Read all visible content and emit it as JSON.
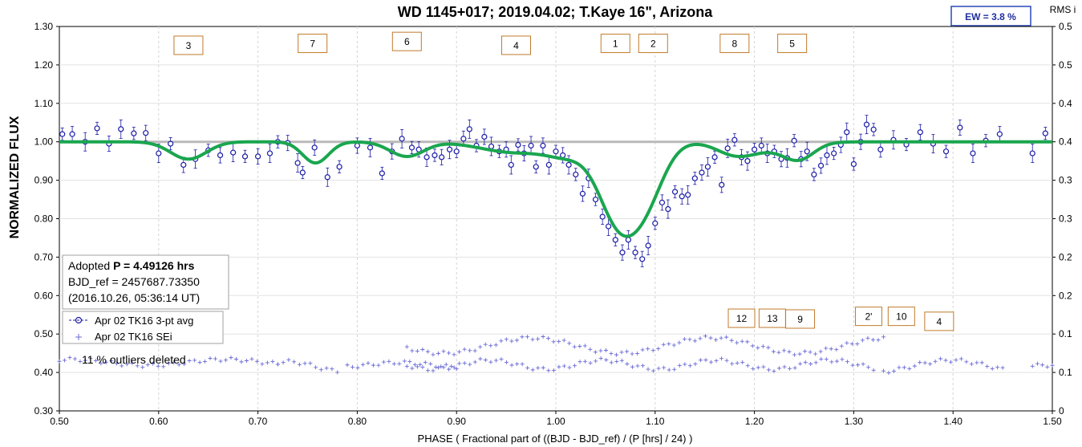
{
  "chart_data": {
    "type": "scatter",
    "title": "WD 1145+017; 2019.04.02; T.Kaye 16\", Arizona",
    "xlabel": "PHASE ( Fractional part of ((BJD - BJD_ref) / (P [hrs] / 24) )",
    "ylabel": "NORMALIZED FLUX",
    "y2label": "RMS i",
    "xlim": [
      0.5,
      1.5
    ],
    "ylim": [
      0.3,
      1.3
    ],
    "y2lim": [
      0,
      0.5
    ],
    "xticks": [
      "0.50",
      "0.60",
      "0.70",
      "0.80",
      "0.90",
      "1.00",
      "1.10",
      "1.20",
      "1.30",
      "1.40",
      "1.50"
    ],
    "yticks": [
      "0.30",
      "0.40",
      "0.50",
      "0.60",
      "0.70",
      "0.80",
      "0.90",
      "1.00",
      "1.10",
      "1.20",
      "1.30"
    ],
    "y2ticks": [
      "0",
      "0.1",
      "0.1",
      "0.2",
      "0.2",
      "0.3",
      "0.3",
      "0.4",
      "0.4",
      "0.5",
      "0.5"
    ],
    "ew_box": "EW =  3.8 %",
    "info": {
      "line1_prefix": "Adopted ",
      "line1_bold": "P = 4.49126 hrs",
      "line2": "BJD_ref = 2457687.73350",
      "line3": "(2016.10.26, 05:36:14 UT)"
    },
    "legend": [
      {
        "label": "Apr 02 TK16 3-pt avg",
        "marker": "circle"
      },
      {
        "label": "Apr 02 TK16 SEi",
        "marker": "plus"
      }
    ],
    "outlier_note": "11 % outliers deleted",
    "dip_labels": [
      {
        "text": "3",
        "x": 0.63,
        "y": 1.25
      },
      {
        "text": "7",
        "x": 0.755,
        "y": 1.255
      },
      {
        "text": "6",
        "x": 0.85,
        "y": 1.26
      },
      {
        "text": "4",
        "x": 0.96,
        "y": 1.25
      },
      {
        "text": "1",
        "x": 1.06,
        "y": 1.255
      },
      {
        "text": "2",
        "x": 1.098,
        "y": 1.255
      },
      {
        "text": "8",
        "x": 1.18,
        "y": 1.255
      },
      {
        "text": "5",
        "x": 1.238,
        "y": 1.255
      },
      {
        "text": "12",
        "x": 1.187,
        "y": 0.54
      },
      {
        "text": "13",
        "x": 1.218,
        "y": 0.54
      },
      {
        "text": "9",
        "x": 1.246,
        "y": 0.538
      },
      {
        "text": "2'",
        "x": 1.315,
        "y": 0.545
      },
      {
        "text": "10",
        "x": 1.348,
        "y": 0.545
      },
      {
        "text": "4",
        "x": 1.386,
        "y": 0.532
      }
    ],
    "reference_line": 1.0,
    "model_curve": {
      "baseline": 1.0,
      "dips": [
        {
          "center": 0.63,
          "depth": 0.045,
          "width": 0.018
        },
        {
          "center": 0.758,
          "depth": 0.055,
          "width": 0.013
        },
        {
          "center": 0.85,
          "depth": 0.038,
          "width": 0.017
        },
        {
          "center": 0.96,
          "depth": 0.028,
          "width": 0.035
        },
        {
          "center": 1.063,
          "depth": 0.2,
          "width": 0.02
        },
        {
          "center": 1.092,
          "depth": 0.12,
          "width": 0.018
        },
        {
          "center": 1.012,
          "depth": 0.03,
          "width": 0.02
        },
        {
          "center": 1.18,
          "depth": 0.025,
          "width": 0.018
        },
        {
          "center": 1.245,
          "depth": 0.038,
          "width": 0.015
        },
        {
          "center": 1.21,
          "depth": 0.02,
          "width": 0.03
        }
      ]
    },
    "series": [
      {
        "name": "Apr 02 TK16 3-pt avg",
        "points": [
          [
            0.503,
            1.02
          ],
          [
            0.513,
            1.02
          ],
          [
            0.526,
            1.0
          ],
          [
            0.538,
            1.035
          ],
          [
            0.55,
            0.995
          ],
          [
            0.562,
            1.033
          ],
          [
            0.575,
            1.022
          ],
          [
            0.587,
            1.023
          ],
          [
            0.6,
            0.97
          ],
          [
            0.612,
            0.995
          ],
          [
            0.625,
            0.94
          ],
          [
            0.637,
            0.955
          ],
          [
            0.65,
            0.978
          ],
          [
            0.662,
            0.965
          ],
          [
            0.675,
            0.972
          ],
          [
            0.687,
            0.962
          ],
          [
            0.7,
            0.962
          ],
          [
            0.712,
            0.97
          ],
          [
            0.72,
            1.0
          ],
          [
            0.73,
            0.997
          ],
          [
            0.74,
            0.945
          ],
          [
            0.745,
            0.92
          ],
          [
            0.757,
            0.985
          ],
          [
            0.77,
            0.908
          ],
          [
            0.782,
            0.935
          ],
          [
            0.8,
            0.99
          ],
          [
            0.813,
            0.985
          ],
          [
            0.825,
            0.918
          ],
          [
            0.835,
            0.975
          ],
          [
            0.845,
            1.008
          ],
          [
            0.855,
            0.985
          ],
          [
            0.862,
            0.98
          ],
          [
            0.87,
            0.96
          ],
          [
            0.878,
            0.965
          ],
          [
            0.885,
            0.96
          ],
          [
            0.893,
            0.98
          ],
          [
            0.9,
            0.975
          ],
          [
            0.907,
            1.008
          ],
          [
            0.913,
            1.033
          ],
          [
            0.92,
            0.99
          ],
          [
            0.928,
            1.013
          ],
          [
            0.935,
            0.988
          ],
          [
            0.943,
            0.975
          ],
          [
            0.95,
            0.98
          ],
          [
            0.955,
            0.94
          ],
          [
            0.962,
            0.992
          ],
          [
            0.968,
            0.97
          ],
          [
            0.975,
            0.99
          ],
          [
            0.98,
            0.935
          ],
          [
            0.987,
            0.99
          ],
          [
            0.993,
            0.94
          ],
          [
            1.0,
            0.975
          ],
          [
            1.007,
            0.965
          ],
          [
            1.013,
            0.94
          ],
          [
            1.02,
            0.915
          ],
          [
            1.027,
            0.865
          ],
          [
            1.033,
            0.905
          ],
          [
            1.04,
            0.85
          ],
          [
            1.047,
            0.805
          ],
          [
            1.053,
            0.78
          ],
          [
            1.06,
            0.745
          ],
          [
            1.067,
            0.712
          ],
          [
            1.073,
            0.745
          ],
          [
            1.08,
            0.712
          ],
          [
            1.087,
            0.695
          ],
          [
            1.093,
            0.73
          ],
          [
            1.1,
            0.788
          ],
          [
            1.107,
            0.842
          ],
          [
            1.113,
            0.825
          ],
          [
            1.12,
            0.87
          ],
          [
            1.127,
            0.858
          ],
          [
            1.133,
            0.862
          ],
          [
            1.14,
            0.905
          ],
          [
            1.147,
            0.92
          ],
          [
            1.153,
            0.935
          ],
          [
            1.16,
            0.96
          ],
          [
            1.167,
            0.888
          ],
          [
            1.173,
            0.983
          ],
          [
            1.18,
            1.005
          ],
          [
            1.187,
            0.96
          ],
          [
            1.193,
            0.95
          ],
          [
            1.2,
            0.98
          ],
          [
            1.207,
            0.99
          ],
          [
            1.213,
            0.97
          ],
          [
            1.22,
            0.975
          ],
          [
            1.227,
            0.955
          ],
          [
            1.233,
            0.958
          ],
          [
            1.24,
            1.003
          ],
          [
            1.247,
            0.955
          ],
          [
            1.253,
            0.975
          ],
          [
            1.26,
            0.915
          ],
          [
            1.267,
            0.938
          ],
          [
            1.273,
            0.965
          ],
          [
            1.28,
            0.97
          ],
          [
            1.287,
            0.992
          ],
          [
            1.293,
            1.025
          ],
          [
            1.3,
            0.942
          ],
          [
            1.307,
            1.0
          ],
          [
            1.313,
            1.045
          ],
          [
            1.32,
            1.032
          ],
          [
            1.327,
            0.98
          ],
          [
            1.34,
            1.005
          ],
          [
            1.353,
            0.993
          ],
          [
            1.367,
            1.025
          ],
          [
            1.38,
            0.995
          ],
          [
            1.393,
            0.975
          ],
          [
            1.407,
            1.037
          ],
          [
            1.42,
            0.97
          ],
          [
            1.433,
            1.003
          ],
          [
            1.447,
            1.02
          ],
          [
            1.48,
            0.97
          ],
          [
            1.493,
            1.022
          ]
        ]
      },
      {
        "name": "Apr 02 TK16 SEi",
        "base_rms": 0.06,
        "segments": [
          {
            "x0": 0.5,
            "x1": 0.72,
            "level": 0.063,
            "amp": 0.004,
            "freq": 40
          },
          {
            "x0": 0.72,
            "x1": 0.78,
            "level": 0.058,
            "amp": 0.006,
            "freq": 60
          },
          {
            "x0": 0.79,
            "x1": 0.9,
            "level": 0.06,
            "amp": 0.003,
            "freq": 50
          },
          {
            "x0": 0.85,
            "x1": 1.33,
            "level": 0.085,
            "amp": 0.01,
            "freq": 35
          },
          {
            "x0": 0.85,
            "x1": 1.32,
            "level": 0.06,
            "amp": 0.006,
            "freq": 55
          },
          {
            "x0": 1.33,
            "x1": 1.45,
            "level": 0.058,
            "amp": 0.008,
            "freq": 40
          },
          {
            "x0": 1.48,
            "x1": 1.5,
            "level": 0.058,
            "amp": 0.002,
            "freq": 40
          }
        ]
      }
    ],
    "colors": {
      "model": "#1aa64f",
      "points": "#1a1aa8",
      "sei": "#6b6bd6",
      "refline": "#b9b9b9",
      "box_border": "#c07a2c",
      "ew_border": "#2848b8",
      "ew_text": "#1f2fa0"
    }
  }
}
